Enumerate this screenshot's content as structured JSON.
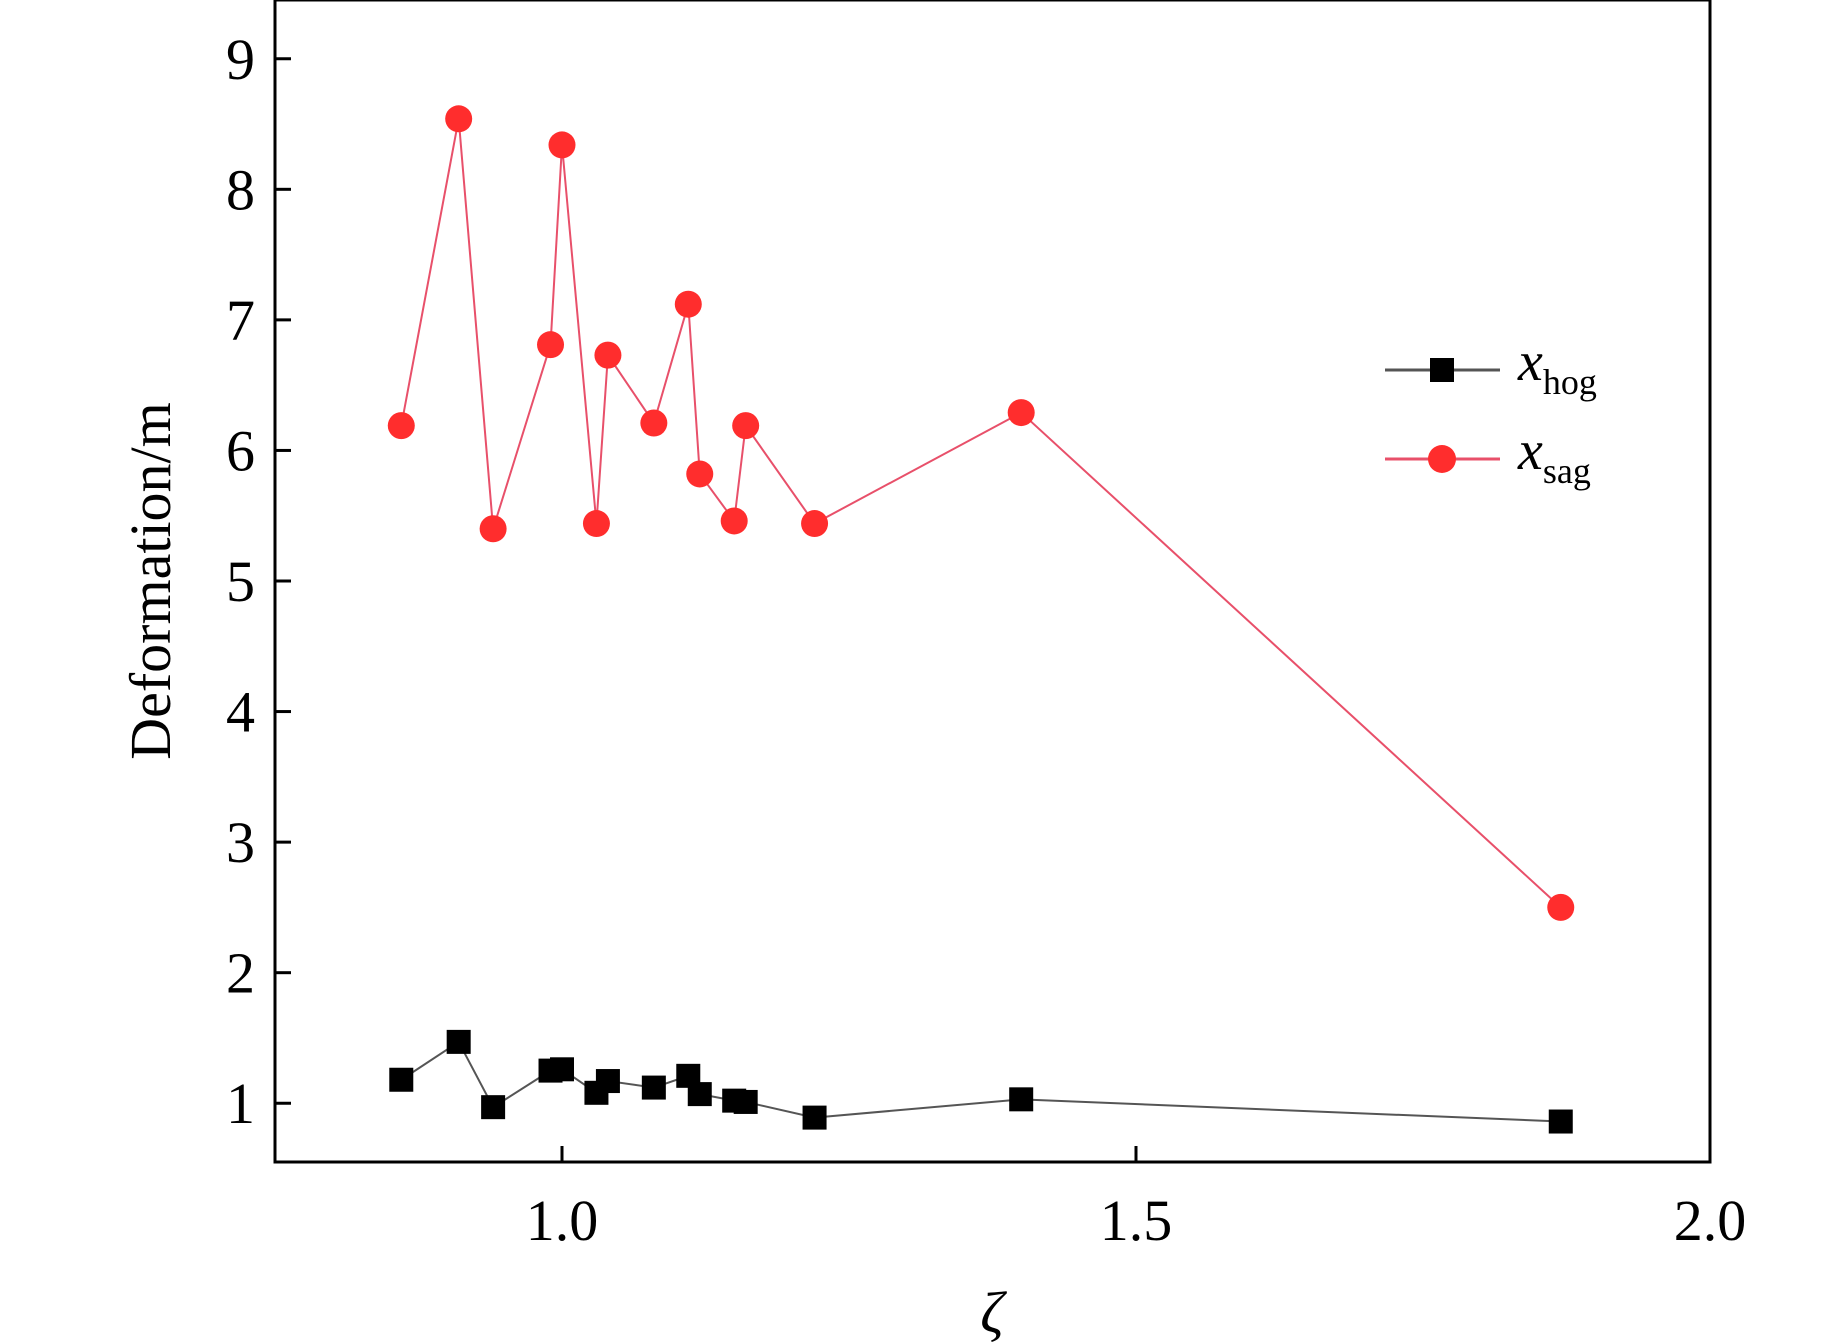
{
  "chart_data": {
    "type": "line",
    "xlabel": "ζ",
    "ylabel": "Deformation/m",
    "xlim": [
      0.75,
      2.0
    ],
    "ylim": [
      0.55,
      9.45
    ],
    "xticks": [
      1.0,
      1.5,
      2.0
    ],
    "xtick_labels": [
      "1.0",
      "1.5",
      "2.0"
    ],
    "yticks": [
      1,
      2,
      3,
      4,
      5,
      6,
      7,
      8,
      9
    ],
    "ytick_labels": [
      "1",
      "2",
      "3",
      "4",
      "5",
      "6",
      "7",
      "8",
      "9"
    ],
    "grid": false,
    "legend_position": "right",
    "series": [
      {
        "name": "x_hog",
        "legend_main": "x",
        "legend_sub": "hog",
        "color": "#000000",
        "line_color": "#555555",
        "marker": "square",
        "x": [
          0.86,
          0.91,
          0.94,
          0.99,
          1.0,
          1.03,
          1.04,
          1.08,
          1.11,
          1.12,
          1.15,
          1.16,
          1.22,
          1.4,
          1.87
        ],
        "y": [
          1.18,
          1.47,
          0.97,
          1.25,
          1.26,
          1.08,
          1.17,
          1.12,
          1.21,
          1.07,
          1.02,
          1.01,
          0.89,
          1.03,
          0.86
        ]
      },
      {
        "name": "x_sag",
        "legend_main": "x",
        "legend_sub": "sag",
        "color": "#ff2d2d",
        "line_color": "#e8506a",
        "marker": "circle",
        "x": [
          0.86,
          0.91,
          0.94,
          0.99,
          1.0,
          1.03,
          1.04,
          1.08,
          1.11,
          1.12,
          1.15,
          1.16,
          1.22,
          1.4,
          1.87
        ],
        "y": [
          6.19,
          8.54,
          5.4,
          6.81,
          8.34,
          5.44,
          6.73,
          6.21,
          7.12,
          5.82,
          5.46,
          6.19,
          5.44,
          6.29,
          2.5
        ]
      }
    ]
  }
}
